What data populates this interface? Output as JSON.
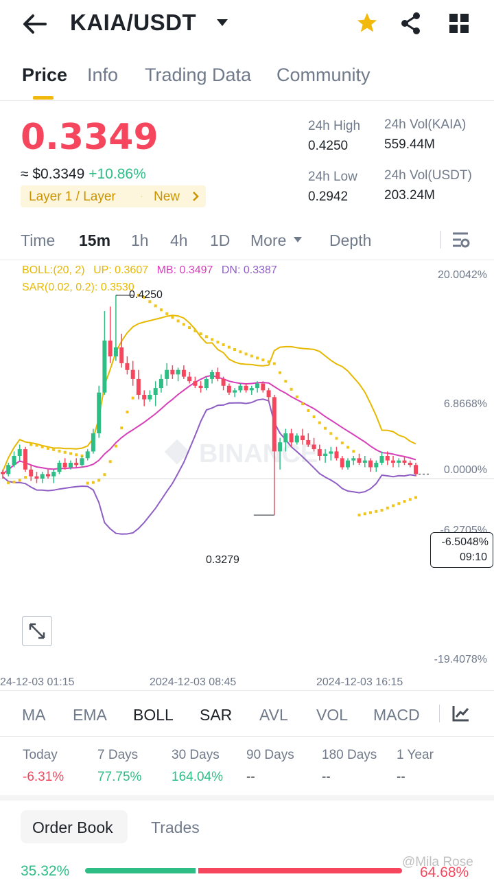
{
  "header": {
    "pair": "KAIA/USDT"
  },
  "tabs": [
    "Price",
    "Info",
    "Trading Data",
    "Community"
  ],
  "price": {
    "last": "0.3349",
    "fiat": "≈ $0.3349",
    "change": "+10.86%",
    "tag_category": "Layer 1 / Layer",
    "tag_new": "New"
  },
  "stats": {
    "high_label": "24h High",
    "high": "0.4250",
    "low_label": "24h Low",
    "low": "0.2942",
    "vol_base_label": "24h Vol(KAIA)",
    "vol_base": "559.44M",
    "vol_quote_label": "24h Vol(USDT)",
    "vol_quote": "203.24M"
  },
  "timeframes": [
    "Time",
    "15m",
    "1h",
    "4h",
    "1D",
    "More",
    "Depth"
  ],
  "chart_legend": {
    "boll": "BOLL:(20, 2)",
    "up": "UP: 0.3607",
    "mb": "MB: 0.3497",
    "dn": "DN: 0.3387",
    "sar": "SAR(0.02, 0.2): 0.3530"
  },
  "chart_axis": {
    "y_ticks": [
      "20.0042%",
      "6.8668%",
      "0.0000%",
      "-6.2705%",
      "-19.4078%"
    ],
    "x_ticks": [
      "24-12-03 01:15",
      "2024-12-03 08:45",
      "2024-12-03 16:15"
    ],
    "high_marker": "0.4250",
    "low_marker": "0.3279",
    "current_pct": "-6.5048%",
    "countdown": "09:10",
    "watermark": "BINANCE"
  },
  "chart_data": {
    "type": "candlestick",
    "series": [
      {
        "values": [
          [
            0.347,
            0.348,
            0.344,
            0.346
          ],
          [
            0.346,
            0.351,
            0.345,
            0.35
          ],
          [
            0.35,
            0.356,
            0.349,
            0.354
          ],
          [
            0.354,
            0.359,
            0.352,
            0.357
          ],
          [
            0.357,
            0.358,
            0.347,
            0.348
          ],
          [
            0.348,
            0.35,
            0.343,
            0.345
          ],
          [
            0.345,
            0.347,
            0.342,
            0.344
          ],
          [
            0.344,
            0.347,
            0.342,
            0.346
          ],
          [
            0.346,
            0.348,
            0.344,
            0.345
          ],
          [
            0.345,
            0.348,
            0.342,
            0.347
          ],
          [
            0.347,
            0.352,
            0.346,
            0.351
          ],
          [
            0.351,
            0.353,
            0.348,
            0.349
          ],
          [
            0.349,
            0.352,
            0.348,
            0.351
          ],
          [
            0.351,
            0.353,
            0.349,
            0.35
          ],
          [
            0.35,
            0.354,
            0.349,
            0.353
          ],
          [
            0.353,
            0.357,
            0.352,
            0.356
          ],
          [
            0.356,
            0.366,
            0.355,
            0.364
          ],
          [
            0.364,
            0.385,
            0.362,
            0.382
          ],
          [
            0.382,
            0.418,
            0.381,
            0.405
          ],
          [
            0.405,
            0.42,
            0.395,
            0.398
          ],
          [
            0.398,
            0.425,
            0.396,
            0.402
          ],
          [
            0.402,
            0.408,
            0.393,
            0.395
          ],
          [
            0.395,
            0.398,
            0.39,
            0.392
          ],
          [
            0.392,
            0.396,
            0.385,
            0.388
          ],
          [
            0.388,
            0.392,
            0.379,
            0.381
          ],
          [
            0.381,
            0.383,
            0.376,
            0.379
          ],
          [
            0.379,
            0.383,
            0.378,
            0.381
          ],
          [
            0.381,
            0.387,
            0.376,
            0.384
          ],
          [
            0.384,
            0.39,
            0.382,
            0.388
          ],
          [
            0.388,
            0.395,
            0.385,
            0.392
          ],
          [
            0.392,
            0.394,
            0.388,
            0.39
          ],
          [
            0.39,
            0.393,
            0.387,
            0.392
          ],
          [
            0.392,
            0.394,
            0.388,
            0.389
          ],
          [
            0.389,
            0.391,
            0.386,
            0.387
          ],
          [
            0.387,
            0.389,
            0.384,
            0.385
          ],
          [
            0.385,
            0.387,
            0.382,
            0.384
          ],
          [
            0.384,
            0.389,
            0.383,
            0.388
          ],
          [
            0.388,
            0.392,
            0.386,
            0.391
          ],
          [
            0.391,
            0.393,
            0.387,
            0.388
          ],
          [
            0.388,
            0.389,
            0.383,
            0.385
          ],
          [
            0.385,
            0.386,
            0.381,
            0.382
          ],
          [
            0.382,
            0.384,
            0.38,
            0.383
          ],
          [
            0.383,
            0.386,
            0.382,
            0.385
          ],
          [
            0.385,
            0.386,
            0.382,
            0.383
          ],
          [
            0.383,
            0.385,
            0.381,
            0.384
          ],
          [
            0.384,
            0.387,
            0.382,
            0.386
          ],
          [
            0.386,
            0.387,
            0.382,
            0.383
          ],
          [
            0.383,
            0.384,
            0.378,
            0.38
          ],
          [
            0.38,
            0.381,
            0.3279,
            0.356
          ],
          [
            0.356,
            0.362,
            0.348,
            0.36
          ],
          [
            0.36,
            0.366,
            0.356,
            0.364
          ],
          [
            0.364,
            0.366,
            0.358,
            0.36
          ],
          [
            0.36,
            0.364,
            0.359,
            0.363
          ],
          [
            0.363,
            0.366,
            0.359,
            0.361
          ],
          [
            0.361,
            0.364,
            0.358,
            0.359
          ],
          [
            0.359,
            0.362,
            0.356,
            0.357
          ],
          [
            0.357,
            0.359,
            0.352,
            0.354
          ],
          [
            0.354,
            0.357,
            0.351,
            0.355
          ],
          [
            0.355,
            0.358,
            0.352,
            0.356
          ],
          [
            0.356,
            0.358,
            0.352,
            0.353
          ],
          [
            0.353,
            0.354,
            0.348,
            0.349
          ],
          [
            0.349,
            0.353,
            0.348,
            0.352
          ],
          [
            0.352,
            0.354,
            0.35,
            0.353
          ],
          [
            0.353,
            0.355,
            0.35,
            0.351
          ],
          [
            0.351,
            0.354,
            0.349,
            0.352
          ],
          [
            0.352,
            0.353,
            0.347,
            0.349
          ],
          [
            0.349,
            0.352,
            0.347,
            0.351
          ],
          [
            0.351,
            0.356,
            0.35,
            0.354
          ],
          [
            0.354,
            0.356,
            0.35,
            0.352
          ],
          [
            0.352,
            0.354,
            0.349,
            0.351
          ],
          [
            0.351,
            0.353,
            0.349,
            0.352
          ],
          [
            0.352,
            0.354,
            0.35,
            0.351
          ],
          [
            0.351,
            0.352,
            0.349,
            0.35
          ],
          [
            0.35,
            0.351,
            0.345,
            0.346
          ]
        ]
      }
    ],
    "x_ticks": [
      "24-12-03 01:15",
      "2024-12-03 08:45",
      "2024-12-03 16:15"
    ],
    "y_ticks_pct": [
      "20.0042%",
      "6.8668%",
      "0.0000%",
      "-6.2705%",
      "-19.4078%"
    ],
    "annotations": {
      "high": "0.4250",
      "low": "0.3279"
    },
    "indicators": {
      "BOLL": "BOLL:(20, 2)",
      "SAR": "SAR(0.02, 0.2)"
    }
  },
  "indicator_tabs": [
    "MA",
    "EMA",
    "BOLL",
    "SAR",
    "AVL",
    "VOL",
    "MACD"
  ],
  "performance": [
    {
      "label": "Today",
      "value": "-6.31%",
      "tone": "red"
    },
    {
      "label": "7 Days",
      "value": "77.75%",
      "tone": "green"
    },
    {
      "label": "30 Days",
      "value": "164.04%",
      "tone": "green"
    },
    {
      "label": "90 Days",
      "value": "--",
      "tone": "none"
    },
    {
      "label": "180 Days",
      "value": "--",
      "tone": "none"
    },
    {
      "label": "1 Year",
      "value": "--",
      "tone": "none"
    }
  ],
  "orderbook": {
    "tab_active": "Order Book",
    "tab_other": "Trades",
    "bid_pct": "35.32%",
    "ask_pct": "64.68%",
    "bid_ratio": 0.3532,
    "watermark": "@Mila Rose"
  },
  "colors": {
    "up": "#2ebd85",
    "down": "#f6465d",
    "accent": "#f0b90b",
    "boll_up": "#e6b800",
    "boll_mb": "#d63fb8",
    "boll_dn": "#8e5ec4"
  }
}
